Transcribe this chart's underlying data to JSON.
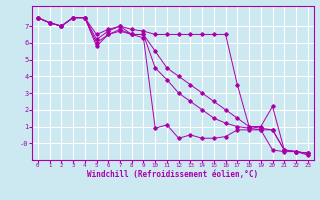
{
  "xlabel": "Windchill (Refroidissement éolien,°C)",
  "bg_color": "#cce8f0",
  "line_color": "#aa00aa",
  "grid_color": "#ffffff",
  "series": [
    [
      7.5,
      7.2,
      7.0,
      7.5,
      7.5,
      5.8,
      6.5,
      6.7,
      6.5,
      6.3,
      0.9,
      1.1,
      0.3,
      0.5,
      0.3,
      0.3,
      0.4,
      0.8,
      0.8,
      0.8,
      -0.4,
      -0.5,
      -0.5,
      -0.7
    ],
    [
      7.5,
      7.2,
      7.0,
      7.5,
      7.5,
      6.2,
      6.7,
      7.0,
      6.8,
      6.7,
      6.5,
      6.5,
      6.5,
      6.5,
      6.5,
      6.5,
      6.5,
      3.5,
      1.0,
      1.0,
      2.2,
      -0.4,
      -0.5,
      -0.6
    ],
    [
      7.5,
      7.2,
      7.0,
      7.5,
      7.5,
      6.5,
      6.8,
      7.0,
      6.5,
      6.5,
      5.5,
      4.5,
      4.0,
      3.5,
      3.0,
      2.5,
      2.0,
      1.5,
      1.0,
      0.9,
      0.8,
      -0.4,
      -0.5,
      -0.6
    ],
    [
      7.5,
      7.2,
      7.0,
      7.5,
      7.5,
      6.0,
      6.5,
      6.8,
      6.5,
      6.5,
      4.5,
      3.8,
      3.0,
      2.5,
      2.0,
      1.5,
      1.2,
      1.0,
      0.9,
      0.8,
      0.8,
      -0.4,
      -0.5,
      -0.6
    ]
  ],
  "xlim": [
    -0.5,
    23.5
  ],
  "ylim": [
    -1.0,
    8.2
  ],
  "xticks": [
    0,
    1,
    2,
    3,
    4,
    5,
    6,
    7,
    8,
    9,
    10,
    11,
    12,
    13,
    14,
    15,
    16,
    17,
    18,
    19,
    20,
    21,
    22,
    23
  ],
  "yticks": [
    0,
    1,
    2,
    3,
    4,
    5,
    6,
    7
  ],
  "ytick_labels": [
    "-0",
    "1",
    "2",
    "3",
    "4",
    "5",
    "6",
    "7"
  ]
}
